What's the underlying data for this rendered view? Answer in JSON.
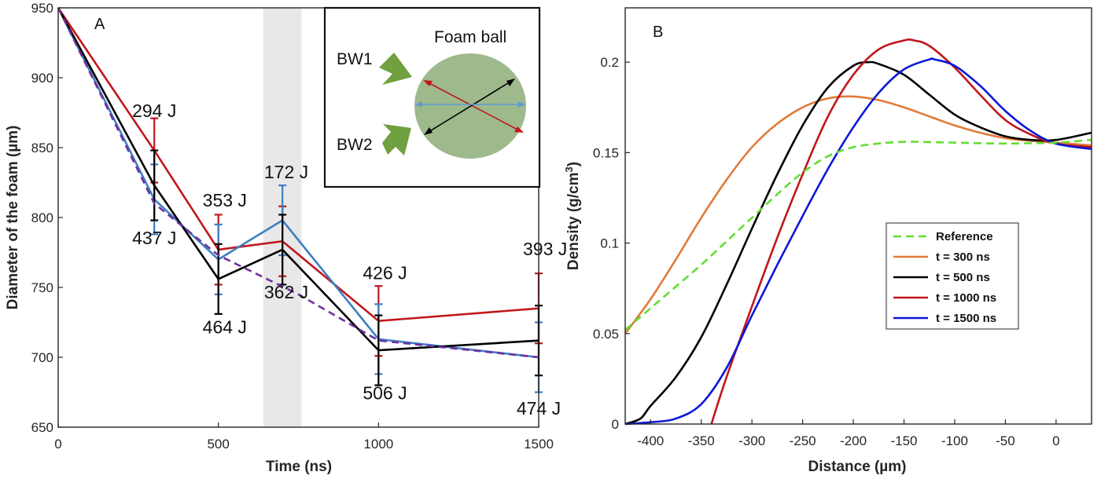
{
  "chart_data": [
    {
      "type": "line",
      "panel_label": "A",
      "xlabel": "Time (ns)",
      "ylabel": "Diameter of the foam (µm)",
      "xlim": [
        0,
        1500
      ],
      "ylim": [
        650,
        950
      ],
      "xticks": [
        0,
        500,
        1000,
        1500
      ],
      "yticks": [
        650,
        700,
        750,
        800,
        850,
        900,
        950
      ],
      "shaded_x_range": [
        640,
        760
      ],
      "series": [
        {
          "color": "#c0171b",
          "style": "solid",
          "x": [
            0,
            300,
            500,
            700,
            1000,
            1500
          ],
          "y": [
            950,
            848,
            777,
            783,
            726,
            735
          ],
          "err": [
            0,
            23,
            25,
            25,
            25,
            25
          ]
        },
        {
          "color": "#3d7fc1",
          "style": "solid",
          "x": [
            0,
            300,
            500,
            700,
            1000,
            1500
          ],
          "y": [
            950,
            813,
            770,
            798,
            713,
            700
          ],
          "err": [
            0,
            25,
            25,
            25,
            25,
            25
          ]
        },
        {
          "color": "#000000",
          "style": "solid",
          "x": [
            0,
            300,
            500,
            700,
            1000,
            1500
          ],
          "y": [
            950,
            823,
            756,
            777,
            705,
            712
          ],
          "err": [
            0,
            25,
            25,
            25,
            25,
            25
          ]
        },
        {
          "color": "#7030a0",
          "style": "dashed",
          "x": [
            0,
            300,
            500,
            750,
            1000,
            1500
          ],
          "y": [
            950,
            810,
            773,
            745,
            712,
            700
          ],
          "err": []
        }
      ],
      "annotations": [
        {
          "text": "294 J",
          "x": 300,
          "y": 872
        },
        {
          "text": "437 J",
          "x": 300,
          "y": 781
        },
        {
          "text": "353 J",
          "x": 520,
          "y": 808
        },
        {
          "text": "464 J",
          "x": 520,
          "y": 717
        },
        {
          "text": "172 J",
          "x": 712,
          "y": 828
        },
        {
          "text": "362 J",
          "x": 712,
          "y": 742
        },
        {
          "text": "426 J",
          "x": 1020,
          "y": 756
        },
        {
          "text": "506 J",
          "x": 1020,
          "y": 670
        },
        {
          "text": "393 J",
          "x": 1520,
          "y": 773
        },
        {
          "text": "474 J",
          "x": 1500,
          "y": 659
        }
      ],
      "inset": {
        "title": "Foam ball",
        "labels": [
          "BW1",
          "BW2"
        ],
        "colors": {
          "ball": "#9eb98c",
          "arrow": "#70a040",
          "red": "#c0171b",
          "black": "#000000",
          "blue": "#5b9bd5"
        }
      }
    },
    {
      "type": "line",
      "panel_label": "B",
      "xlabel": "Distance (µm)",
      "ylabel": "Density (g/cm",
      "ylabel_sup": "3",
      "ylabel_end": ")",
      "xlim": [
        -425,
        35
      ],
      "ylim": [
        0,
        0.23
      ],
      "xticks": [
        -400,
        -350,
        -300,
        -250,
        -200,
        -150,
        -100,
        -50,
        0
      ],
      "yticks": [
        0,
        0.05,
        0.1,
        0.15,
        0.2
      ],
      "ytick_labels": [
        "0",
        "0.05",
        "0.1",
        "0.15",
        "0.2"
      ],
      "series": [
        {
          "name": "Reference",
          "color": "#66dd33",
          "style": "dashed",
          "x": [
            -425,
            -400,
            -375,
            -350,
            -325,
            -300,
            -275,
            -250,
            -225,
            -200,
            -175,
            -150,
            -125,
            -100,
            -75,
            -50,
            -25,
            0,
            35
          ],
          "y": [
            0.052,
            0.064,
            0.076,
            0.088,
            0.101,
            0.114,
            0.127,
            0.139,
            0.148,
            0.153,
            0.155,
            0.156,
            0.1558,
            0.1555,
            0.1552,
            0.155,
            0.1552,
            0.1555,
            0.157
          ]
        },
        {
          "name": "t = 300 ns",
          "color": "#e07b39",
          "style": "solid",
          "x": [
            -425,
            -400,
            -375,
            -350,
            -325,
            -300,
            -275,
            -250,
            -225,
            -200,
            -175,
            -150,
            -125,
            -100,
            -75,
            -50,
            -25,
            0,
            35
          ],
          "y": [
            0.05,
            0.069,
            0.091,
            0.114,
            0.135,
            0.153,
            0.166,
            0.175,
            0.18,
            0.181,
            0.179,
            0.175,
            0.17,
            0.165,
            0.161,
            0.158,
            0.1565,
            0.1555,
            0.154
          ]
        },
        {
          "name": "t = 500 ns",
          "color": "#000000",
          "style": "solid",
          "x": [
            -425,
            -410,
            -400,
            -375,
            -350,
            -325,
            -300,
            -275,
            -250,
            -225,
            -200,
            -185,
            -175,
            -150,
            -125,
            -100,
            -75,
            -50,
            -25,
            0,
            35
          ],
          "y": [
            0,
            0.003,
            0.01,
            0.026,
            0.048,
            0.077,
            0.108,
            0.138,
            0.165,
            0.186,
            0.198,
            0.2,
            0.199,
            0.193,
            0.182,
            0.171,
            0.164,
            0.159,
            0.157,
            0.157,
            0.161
          ]
        },
        {
          "name": "t = 1000 ns",
          "color": "#c0171b",
          "style": "solid",
          "x": [
            -340,
            -325,
            -300,
            -275,
            -250,
            -225,
            -200,
            -175,
            -150,
            -140,
            -125,
            -100,
            -75,
            -50,
            -25,
            0,
            35
          ],
          "y": [
            0,
            0.026,
            0.065,
            0.103,
            0.138,
            0.17,
            0.193,
            0.207,
            0.212,
            0.212,
            0.209,
            0.197,
            0.182,
            0.168,
            0.16,
            0.155,
            0.153
          ]
        },
        {
          "name": "t = 1500 ns",
          "color": "#0b17d9",
          "style": "solid",
          "x": [
            -425,
            -400,
            -375,
            -350,
            -325,
            -300,
            -275,
            -250,
            -225,
            -200,
            -175,
            -150,
            -125,
            -120,
            -100,
            -75,
            -50,
            -25,
            0,
            35
          ],
          "y": [
            0,
            0.001,
            0.003,
            0.011,
            0.031,
            0.06,
            0.088,
            0.115,
            0.141,
            0.164,
            0.183,
            0.196,
            0.2015,
            0.2015,
            0.198,
            0.187,
            0.173,
            0.162,
            0.155,
            0.152
          ]
        }
      ]
    }
  ]
}
